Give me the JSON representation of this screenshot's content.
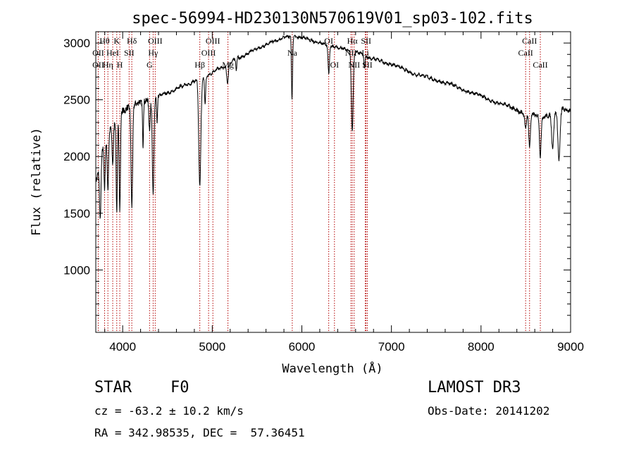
{
  "chart_data": {
    "type": "line",
    "title": "spec-56994-HD230130N570619V01_sp03-102.fits",
    "xlabel": "Wavelength (Å)",
    "ylabel": "Flux (relative)",
    "xlim": [
      3700,
      9000
    ],
    "ylim": [
      450,
      3100
    ],
    "x_ticks": [
      4000,
      5000,
      6000,
      7000,
      8000,
      9000
    ],
    "x_tick_labels": [
      "4000",
      "5000",
      "6000",
      "7000",
      "8000",
      "9000"
    ],
    "y_ticks": [
      1000,
      1500,
      2000,
      2500,
      3000
    ],
    "y_tick_labels": [
      "1000",
      "1500",
      "2000",
      "2500",
      "3000"
    ],
    "grid": false,
    "continuum_anchors": {
      "x": [
        3700,
        3800,
        3900,
        4000,
        4100,
        4200,
        4300,
        4500,
        4700,
        4900,
        5100,
        5300,
        5500,
        5700,
        5850,
        6000,
        6200,
        6400,
        6600,
        6800,
        7000,
        7300,
        7600,
        7900,
        8200,
        8500,
        8700,
        8900,
        9000
      ],
      "y": [
        1800,
        2100,
        2300,
        2400,
        2450,
        2480,
        2500,
        2560,
        2630,
        2700,
        2780,
        2870,
        2950,
        3020,
        3060,
        3050,
        3000,
        2960,
        2920,
        2860,
        2810,
        2720,
        2650,
        2560,
        2470,
        2380,
        2350,
        2420,
        2400
      ]
    },
    "absorption_features": {
      "center": [
        3750,
        3798,
        3835,
        3889,
        3934,
        3968,
        4102,
        4227,
        4300,
        4340,
        4384,
        4861,
        4920,
        5170,
        5269,
        5890,
        6300,
        6563,
        6700,
        8498,
        8542,
        8662,
        8800,
        8870
      ],
      "depth": [
        500,
        400,
        450,
        350,
        800,
        850,
        900,
        400,
        250,
        850,
        250,
        950,
        250,
        150,
        100,
        550,
        250,
        700,
        120,
        150,
        300,
        350,
        300,
        450
      ],
      "width": [
        8,
        6,
        7,
        8,
        7,
        7,
        9,
        5,
        8,
        9,
        5,
        12,
        6,
        10,
        5,
        6,
        8,
        10,
        6,
        8,
        9,
        9,
        12,
        12
      ]
    },
    "line_markers": [
      {
        "label": "Hθ",
        "wavelength": 3798,
        "row": 1
      },
      {
        "label": "OII",
        "wavelength": 3727,
        "row": 2
      },
      {
        "label": "HeI",
        "wavelength": 3889,
        "row": 2
      },
      {
        "label": "OII",
        "wavelength": 3727,
        "row": 3
      },
      {
        "label": "Hη",
        "wavelength": 3835,
        "row": 3
      },
      {
        "label": "K",
        "wavelength": 3934,
        "row": 1
      },
      {
        "label": "SII",
        "wavelength": 4072,
        "row": 2
      },
      {
        "label": "H",
        "wavelength": 3968,
        "row": 3
      },
      {
        "label": "Hδ",
        "wavelength": 4102,
        "row": 1
      },
      {
        "label": "OIII",
        "wavelength": 4363,
        "row": 1
      },
      {
        "label": "Hγ",
        "wavelength": 4340,
        "row": 2
      },
      {
        "label": "G",
        "wavelength": 4300,
        "row": 3
      },
      {
        "label": "OIII",
        "wavelength": 5007,
        "row": 1
      },
      {
        "label": "OIII",
        "wavelength": 4959,
        "row": 2
      },
      {
        "label": "Hβ",
        "wavelength": 4861,
        "row": 3
      },
      {
        "label": "Mg",
        "wavelength": 5175,
        "row": 3
      },
      {
        "label": "Na",
        "wavelength": 5893,
        "row": 2
      },
      {
        "label": "OI",
        "wavelength": 6300,
        "row": 1
      },
      {
        "label": "OI",
        "wavelength": 6364,
        "row": 3
      },
      {
        "label": "Hα",
        "wavelength": 6563,
        "row": 1
      },
      {
        "label": "SII",
        "wavelength": 6717,
        "row": 1
      },
      {
        "label": "NII",
        "wavelength": 6548,
        "row": 2
      },
      {
        "label": "Li",
        "wavelength": 6708,
        "row": 2
      },
      {
        "label": "NII",
        "wavelength": 6584,
        "row": 3
      },
      {
        "label": "SII",
        "wavelength": 6731,
        "row": 3
      },
      {
        "label": "CaII",
        "wavelength": 8542,
        "row": 1
      },
      {
        "label": "CaII",
        "wavelength": 8498,
        "row": 2
      },
      {
        "label": "CaII",
        "wavelength": 8662,
        "row": 3
      }
    ],
    "marker_lines": [
      3727,
      3798,
      3835,
      3889,
      3934,
      3968,
      4072,
      4102,
      4300,
      4340,
      4363,
      4861,
      4959,
      5007,
      5175,
      5893,
      6300,
      6364,
      6548,
      6563,
      6584,
      6708,
      6717,
      6731,
      8498,
      8542,
      8662
    ],
    "colors": {
      "spectrum": "#000000",
      "marker_line": "#b30000",
      "axes": "#000000"
    }
  },
  "info": {
    "object_class": "STAR",
    "subclass": "F0",
    "survey": "LAMOST DR3",
    "redshift": "cz = -63.2 ± 10.2 km/s",
    "obs_date": "Obs-Date: 20141202",
    "coords": "RA = 342.98535, DEC =  57.36451"
  }
}
